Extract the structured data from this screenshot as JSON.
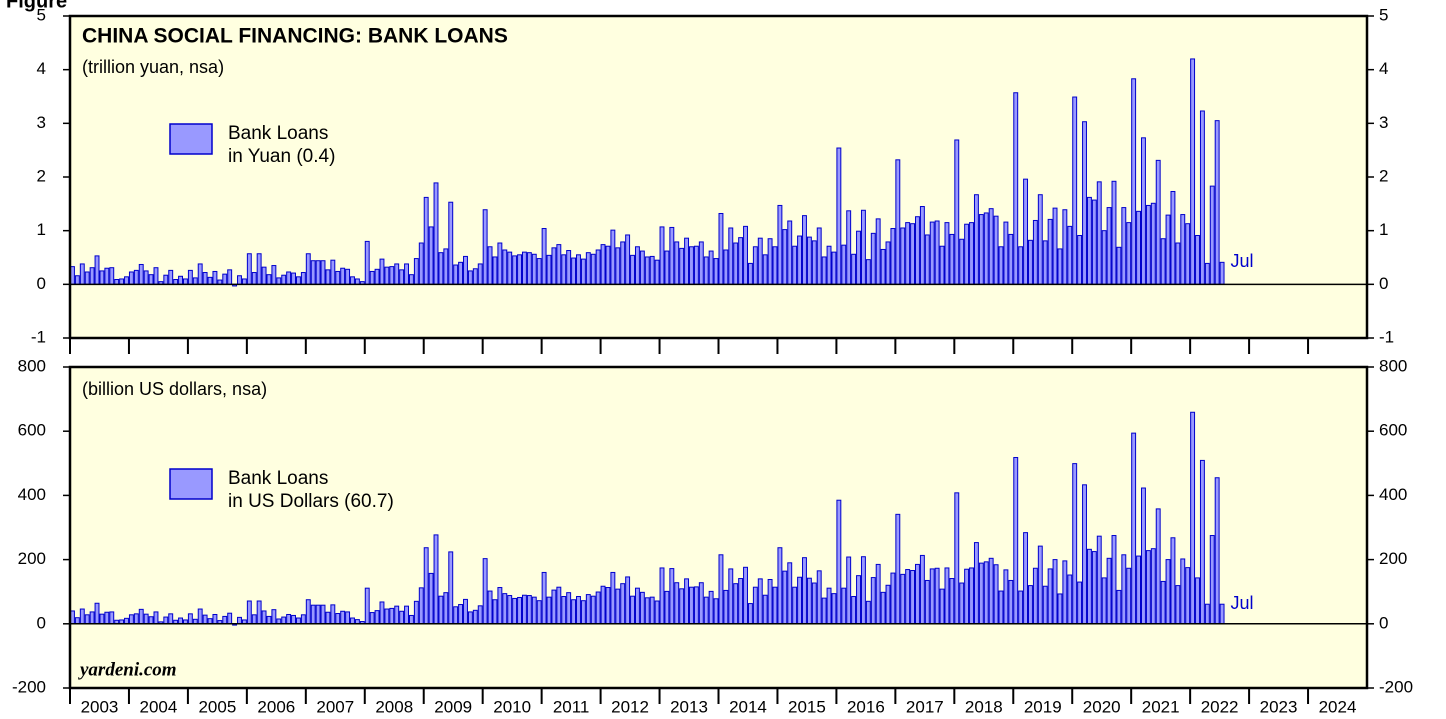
{
  "figure_label": "Figure",
  "source": "yardeni.com",
  "chart_data": [
    {
      "type": "bar",
      "title": "CHINA SOCIAL FINANCING: BANK LOANS",
      "subtitle": "(trillion yuan, nsa)",
      "annotation": "Jul",
      "xlim": [
        2003,
        2025
      ],
      "xticks": [
        2003,
        2004,
        2005,
        2006,
        2007,
        2008,
        2009,
        2010,
        2011,
        2012,
        2013,
        2014,
        2015,
        2016,
        2017,
        2018,
        2019,
        2020,
        2021,
        2022,
        2023,
        2024
      ],
      "ylim": [
        -1,
        5
      ],
      "yticks": [
        -1,
        0,
        1,
        2,
        3,
        4,
        5
      ],
      "series": [
        {
          "name": "Bank Loans\nin Yuan (0.4)",
          "color": "#9999ff",
          "values": [
            0.33,
            0.16,
            0.38,
            0.23,
            0.31,
            0.53,
            0.25,
            0.3,
            0.31,
            0.09,
            0.1,
            0.14,
            0.23,
            0.26,
            0.37,
            0.25,
            0.18,
            0.31,
            0.05,
            0.17,
            0.26,
            0.09,
            0.15,
            0.1,
            0.26,
            0.12,
            0.38,
            0.22,
            0.13,
            0.24,
            0.08,
            0.19,
            0.27,
            -0.03,
            0.16,
            0.1,
            0.57,
            0.22,
            0.57,
            0.32,
            0.18,
            0.35,
            0.12,
            0.17,
            0.23,
            0.21,
            0.14,
            0.22,
            0.57,
            0.44,
            0.44,
            0.44,
            0.27,
            0.45,
            0.24,
            0.3,
            0.28,
            0.14,
            0.1,
            0.05,
            0.8,
            0.24,
            0.28,
            0.47,
            0.32,
            0.33,
            0.38,
            0.27,
            0.38,
            0.18,
            0.48,
            0.77,
            1.62,
            1.07,
            1.89,
            0.59,
            0.66,
            1.53,
            0.36,
            0.41,
            0.52,
            0.25,
            0.29,
            0.38,
            1.39,
            0.7,
            0.51,
            0.77,
            0.64,
            0.6,
            0.53,
            0.55,
            0.6,
            0.59,
            0.56,
            0.48,
            1.04,
            0.54,
            0.68,
            0.74,
            0.55,
            0.63,
            0.49,
            0.55,
            0.47,
            0.59,
            0.56,
            0.64,
            0.74,
            0.71,
            1.01,
            0.68,
            0.79,
            0.92,
            0.54,
            0.7,
            0.62,
            0.51,
            0.52,
            0.45,
            1.07,
            0.62,
            1.06,
            0.79,
            0.67,
            0.86,
            0.7,
            0.71,
            0.79,
            0.51,
            0.62,
            0.48,
            1.32,
            0.64,
            1.05,
            0.77,
            0.87,
            1.08,
            0.39,
            0.7,
            0.86,
            0.55,
            0.85,
            0.7,
            1.47,
            1.02,
            1.18,
            0.71,
            0.9,
            1.28,
            0.88,
            0.81,
            1.05,
            0.51,
            0.71,
            0.6,
            2.54,
            0.73,
            1.37,
            0.56,
            0.99,
            1.38,
            0.46,
            0.95,
            1.22,
            0.65,
            0.79,
            1.04,
            2.32,
            1.05,
            1.15,
            1.13,
            1.26,
            1.45,
            0.92,
            1.16,
            1.18,
            0.71,
            1.15,
            0.93,
            2.69,
            0.84,
            1.12,
            1.15,
            1.67,
            1.3,
            1.33,
            1.41,
            1.27,
            0.7,
            1.16,
            0.93,
            3.57,
            0.7,
            1.96,
            0.82,
            1.19,
            1.67,
            0.81,
            1.21,
            1.42,
            0.66,
            1.39,
            1.08,
            3.49,
            0.91,
            3.03,
            1.62,
            1.57,
            1.91,
            1.0,
            1.43,
            1.92,
            0.69,
            1.43,
            1.15,
            3.83,
            1.36,
            2.73,
            1.47,
            1.51,
            2.31,
            0.85,
            1.29,
            1.73,
            0.77,
            1.3,
            1.13,
            4.2,
            0.91,
            3.23,
            0.39,
            1.83,
            3.05,
            0.41
          ]
        }
      ]
    },
    {
      "type": "bar",
      "subtitle": "(billion US dollars, nsa)",
      "annotation": "Jul",
      "xlim": [
        2003,
        2025
      ],
      "xticks": [
        2003,
        2004,
        2005,
        2006,
        2007,
        2008,
        2009,
        2010,
        2011,
        2012,
        2013,
        2014,
        2015,
        2016,
        2017,
        2018,
        2019,
        2020,
        2021,
        2022,
        2023,
        2024
      ],
      "ylim": [
        -200,
        800
      ],
      "yticks": [
        -200,
        0,
        200,
        400,
        600,
        800
      ],
      "series": [
        {
          "name": "Bank Loans\nin US Dollars (60.7)",
          "color": "#9999ff",
          "values": [
            40,
            19,
            46,
            28,
            37,
            64,
            30,
            36,
            37,
            11,
            12,
            17,
            28,
            31,
            45,
            30,
            22,
            37,
            6,
            21,
            31,
            11,
            18,
            12,
            31,
            14,
            46,
            27,
            16,
            29,
            10,
            23,
            33,
            -4,
            20,
            12,
            71,
            28,
            71,
            40,
            23,
            44,
            15,
            21,
            29,
            26,
            18,
            28,
            75,
            58,
            58,
            58,
            36,
            59,
            32,
            39,
            37,
            18,
            13,
            7,
            111,
            35,
            41,
            68,
            46,
            48,
            55,
            39,
            55,
            26,
            70,
            112,
            237,
            157,
            277,
            86,
            97,
            224,
            53,
            60,
            76,
            37,
            42,
            56,
            203,
            102,
            75,
            113,
            94,
            88,
            79,
            82,
            89,
            88,
            83,
            72,
            160,
            83,
            105,
            114,
            85,
            97,
            75,
            85,
            72,
            91,
            86,
            99,
            117,
            113,
            160,
            108,
            125,
            146,
            86,
            111,
            98,
            81,
            83,
            71,
            174,
            101,
            172,
            128,
            109,
            140,
            114,
            115,
            128,
            83,
            101,
            78,
            215,
            104,
            171,
            125,
            141,
            176,
            63,
            114,
            140,
            89,
            138,
            114,
            237,
            164,
            190,
            114,
            145,
            206,
            142,
            127,
            165,
            80,
            111,
            94,
            385,
            111,
            208,
            85,
            150,
            209,
            70,
            144,
            185,
            98,
            120,
            158,
            341,
            154,
            169,
            166,
            185,
            213,
            135,
            171,
            173,
            108,
            174,
            141,
            408,
            127,
            170,
            174,
            253,
            189,
            193,
            204,
            184,
            102,
            168,
            135,
            518,
            102,
            284,
            119,
            173,
            242,
            117,
            171,
            200,
            93,
            196,
            152,
            499,
            130,
            433,
            232,
            225,
            273,
            143,
            204,
            275,
            104,
            215,
            173,
            594,
            211,
            423,
            228,
            234,
            358,
            132,
            200,
            268,
            119,
            202,
            175,
            659,
            143,
            509,
            61,
            275,
            455,
            61
          ]
        }
      ]
    }
  ]
}
